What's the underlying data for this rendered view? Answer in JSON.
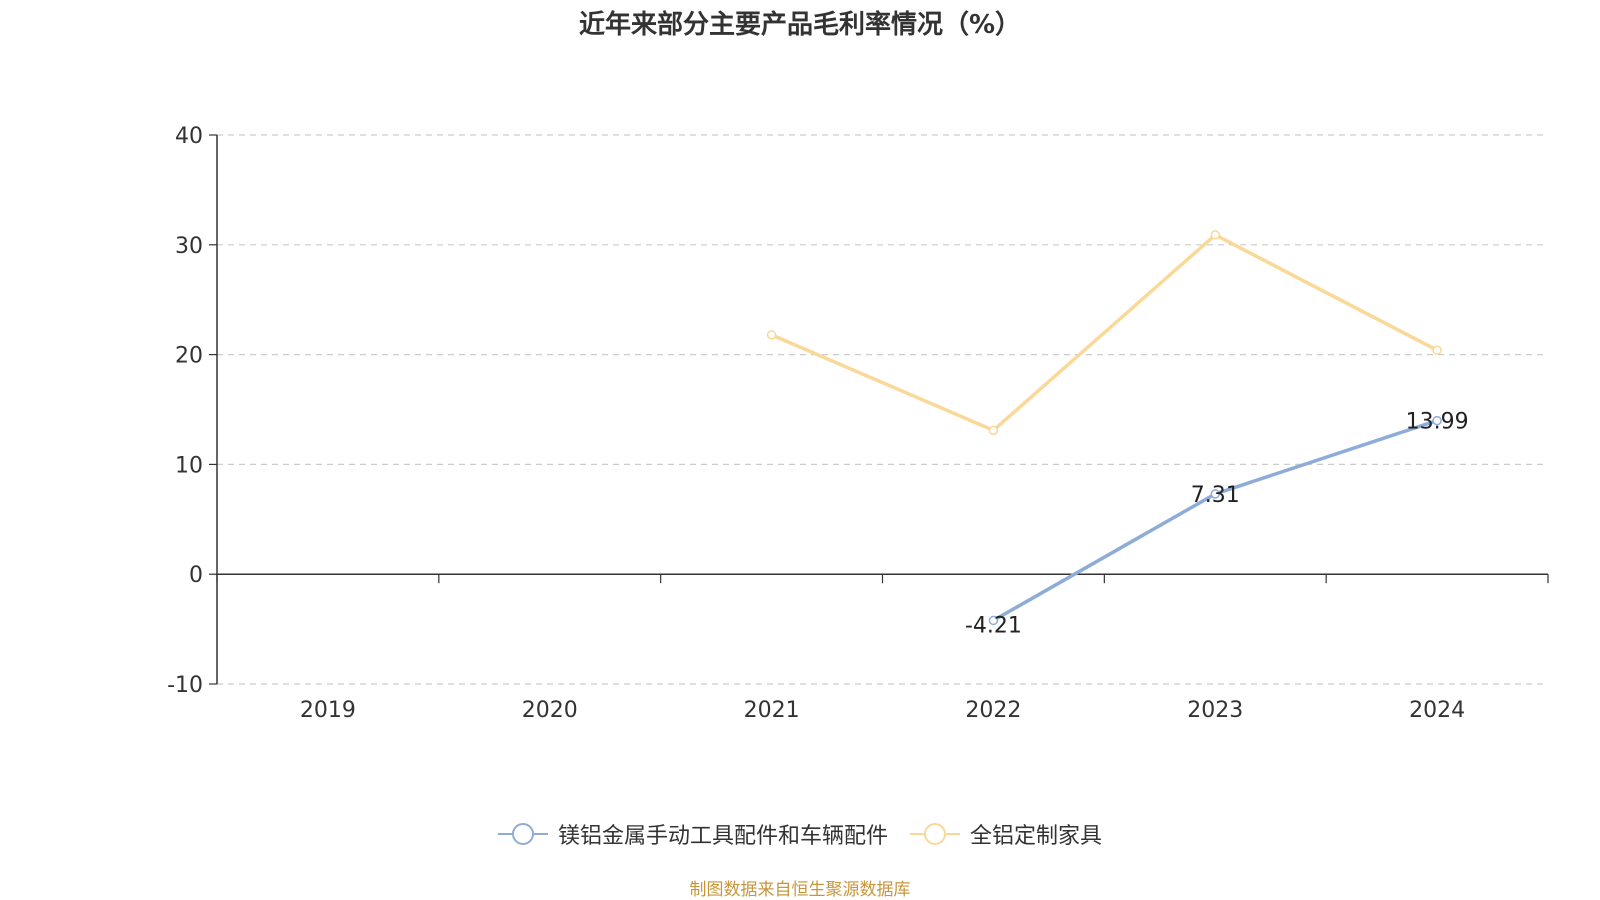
{
  "chart_data": {
    "type": "line",
    "title": "近年来部分主要产品毛利率情况（%）",
    "categories": [
      "2019",
      "2020",
      "2021",
      "2022",
      "2023",
      "2024"
    ],
    "ylim": [
      -10,
      40
    ],
    "yticks": [
      -10,
      0,
      10,
      20,
      30,
      40
    ],
    "grid": "horizontal dashed",
    "legend_position": "bottom",
    "series": [
      {
        "name": "镁铝金属手动工具配件和车辆配件",
        "color": "#8eacd8",
        "values": [
          null,
          null,
          null,
          -4.21,
          7.31,
          13.99
        ],
        "labels": [
          null,
          null,
          null,
          "-4.21",
          "7.31",
          "13.99"
        ]
      },
      {
        "name": "全铝定制家具",
        "color": "#f9d898",
        "values": [
          null,
          null,
          21.8,
          13.1,
          30.9,
          20.4
        ],
        "labels": [
          null,
          null,
          null,
          null,
          null,
          null
        ]
      }
    ]
  },
  "source": "制图数据来自恒生聚源数据库"
}
